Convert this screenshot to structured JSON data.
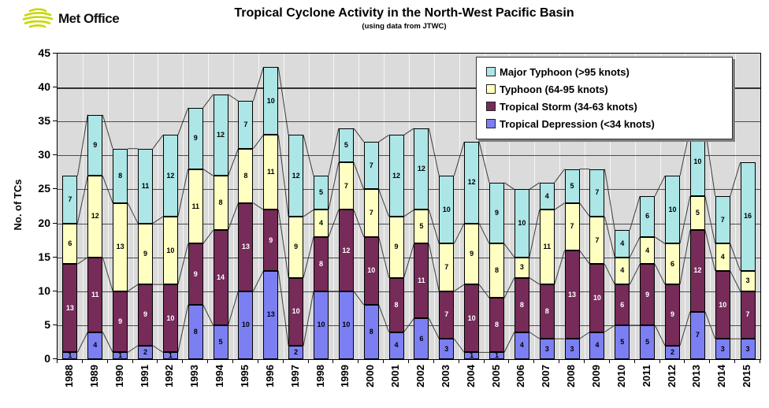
{
  "logo": {
    "text": "Met Office",
    "green": "#C6D800"
  },
  "title": "Tropical Cyclone Activity in the North-West Pacific Basin",
  "subtitle": "(using data from JTWC)",
  "y_axis": {
    "label": "No. of TCs"
  },
  "legend": [
    {
      "label": "Major Typhoon (>95 knots)",
      "color": "#ACE6E6"
    },
    {
      "label": "Typhoon (64-95 knots)",
      "color": "#FFFFC2"
    },
    {
      "label": "Tropical Storm (34-63 knots)",
      "color": "#762B59"
    },
    {
      "label": "Tropical Depression (<34 knots)",
      "color": "#7C7FF2"
    }
  ],
  "chart_data": {
    "type": "bar",
    "stacked": true,
    "series_lines": true,
    "grid": true,
    "legend_position": "top-right",
    "title": "Tropical Cyclone Activity in the North-West Pacific Basin",
    "subtitle": "(using data from JTWC)",
    "xlabel": "",
    "ylabel": "No. of TCs",
    "ylim": [
      0,
      45
    ],
    "ytick_step": 5,
    "categories": [
      "1988",
      "1989",
      "1990",
      "1991",
      "1992",
      "1993",
      "1994",
      "1995",
      "1996",
      "1997",
      "1998",
      "1999",
      "2000",
      "2001",
      "2002",
      "2003",
      "2004",
      "2005",
      "2006",
      "2007",
      "2008",
      "2009",
      "2010",
      "2011",
      "2012",
      "2013",
      "2014",
      "2015"
    ],
    "series": [
      {
        "name": "Tropical Depression (<34 knots)",
        "color": "#7C7FF2",
        "label_color": "#000000",
        "values": [
          1,
          4,
          1,
          2,
          1,
          8,
          5,
          10,
          13,
          2,
          10,
          10,
          8,
          4,
          6,
          3,
          1,
          1,
          4,
          3,
          3,
          4,
          5,
          5,
          2,
          7,
          3,
          3
        ]
      },
      {
        "name": "Tropical Storm (34-63 knots)",
        "color": "#762B59",
        "label_color": "#FFFFFF",
        "values": [
          13,
          11,
          9,
          9,
          10,
          9,
          14,
          13,
          9,
          10,
          8,
          12,
          10,
          8,
          11,
          7,
          10,
          8,
          8,
          8,
          13,
          10,
          6,
          9,
          9,
          12,
          10,
          7
        ]
      },
      {
        "name": "Typhoon (64-95 knots)",
        "color": "#FFFFC2",
        "label_color": "#000000",
        "values": [
          6,
          12,
          13,
          9,
          10,
          11,
          8,
          8,
          11,
          9,
          4,
          7,
          7,
          9,
          5,
          7,
          9,
          8,
          3,
          11,
          7,
          7,
          4,
          4,
          6,
          5,
          4,
          3
        ]
      },
      {
        "name": "Major Typhoon (>95 knots)",
        "color": "#ACE6E6",
        "label_color": "#000000",
        "values": [
          7,
          9,
          8,
          11,
          12,
          9,
          12,
          7,
          10,
          12,
          5,
          5,
          7,
          12,
          12,
          10,
          12,
          9,
          10,
          4,
          5,
          7,
          4,
          6,
          10,
          10,
          7,
          16
        ]
      }
    ]
  }
}
